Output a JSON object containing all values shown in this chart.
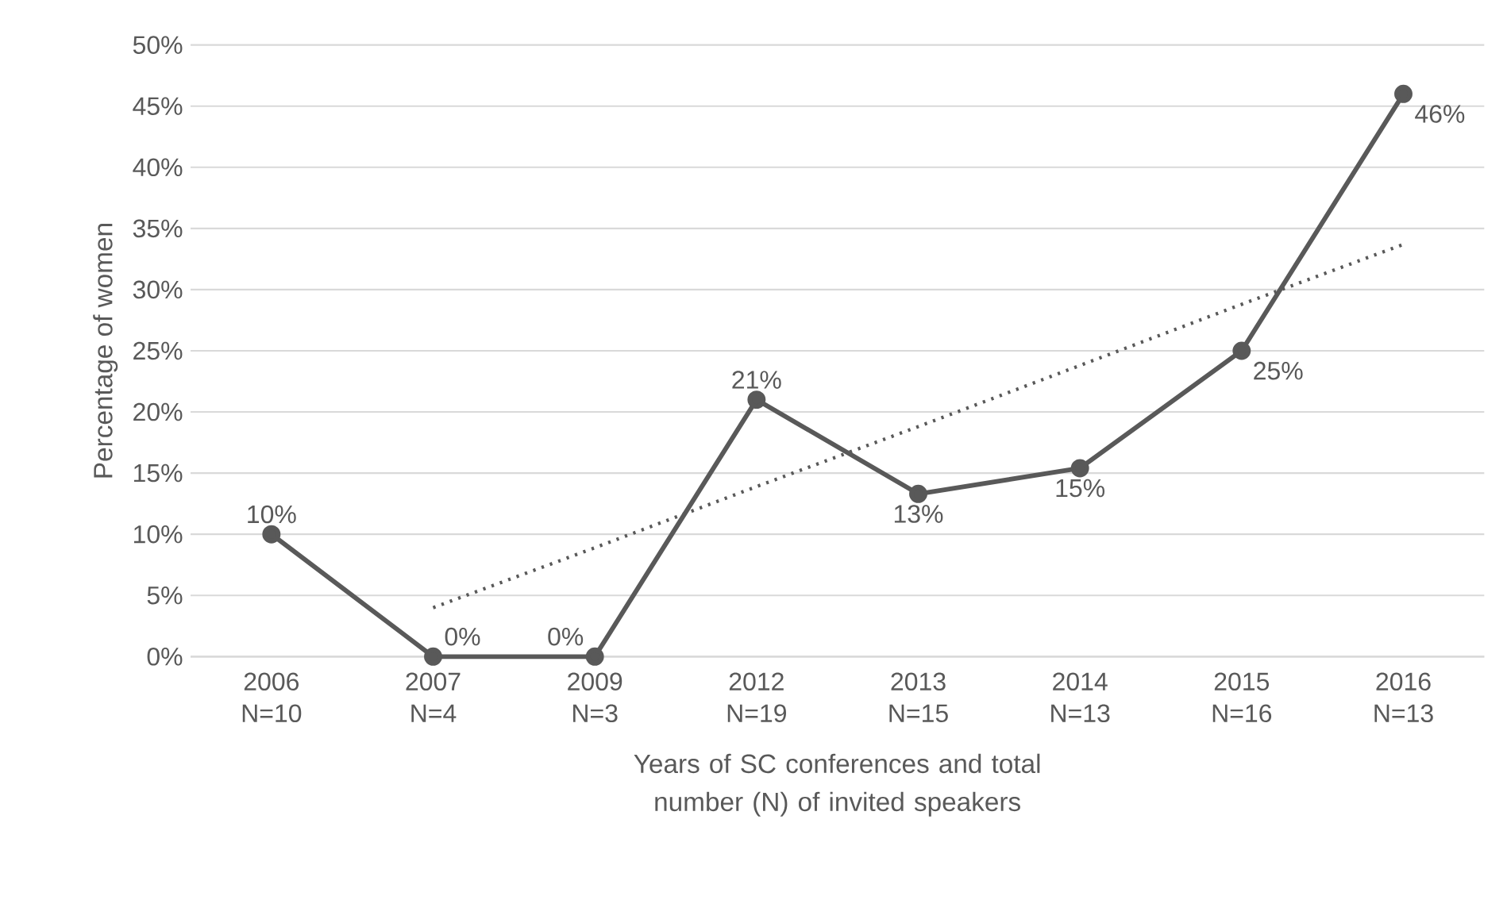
{
  "chart_data": {
    "type": "line",
    "xlabel": "Years of SC conferences and total number (N) of invited speakers",
    "ylabel": "Percentage of women",
    "categories": [
      "2006 N=10",
      "2007 N=4",
      "2009 N=3",
      "2012 N=19",
      "2013 N=15",
      "2014 N=13",
      "2015 N=16",
      "2016 N=13"
    ],
    "series": [
      {
        "color": "#595959",
        "values": [
          10,
          0,
          0,
          21,
          13.3,
          15.4,
          25,
          46
        ],
        "value_labels": [
          "10%",
          "0%",
          "0%",
          "21%",
          "13%",
          "15%",
          "25%",
          "46%"
        ],
        "marker": "circle",
        "line_style": "solid"
      },
      {
        "type": "line",
        "color": "#595959",
        "values": [
          null,
          4,
          8.9,
          13.9,
          18.8,
          23.8,
          28.8,
          33.7
        ],
        "marker": "none",
        "line_style": "dotted"
      }
    ],
    "ylim": [
      0,
      50
    ],
    "yticks": [
      {
        "value": 0,
        "label": "0%"
      },
      {
        "value": 5,
        "label": "5%"
      },
      {
        "value": 10,
        "label": "10%"
      },
      {
        "value": 15,
        "label": "15%"
      },
      {
        "value": 20,
        "label": "20%"
      },
      {
        "value": 25,
        "label": "25%"
      },
      {
        "value": 30,
        "label": "30%"
      },
      {
        "value": 35,
        "label": "35%"
      },
      {
        "value": 40,
        "label": "40%"
      },
      {
        "value": 45,
        "label": "45%"
      },
      {
        "value": 50,
        "label": "50%"
      }
    ],
    "grid": "y"
  }
}
